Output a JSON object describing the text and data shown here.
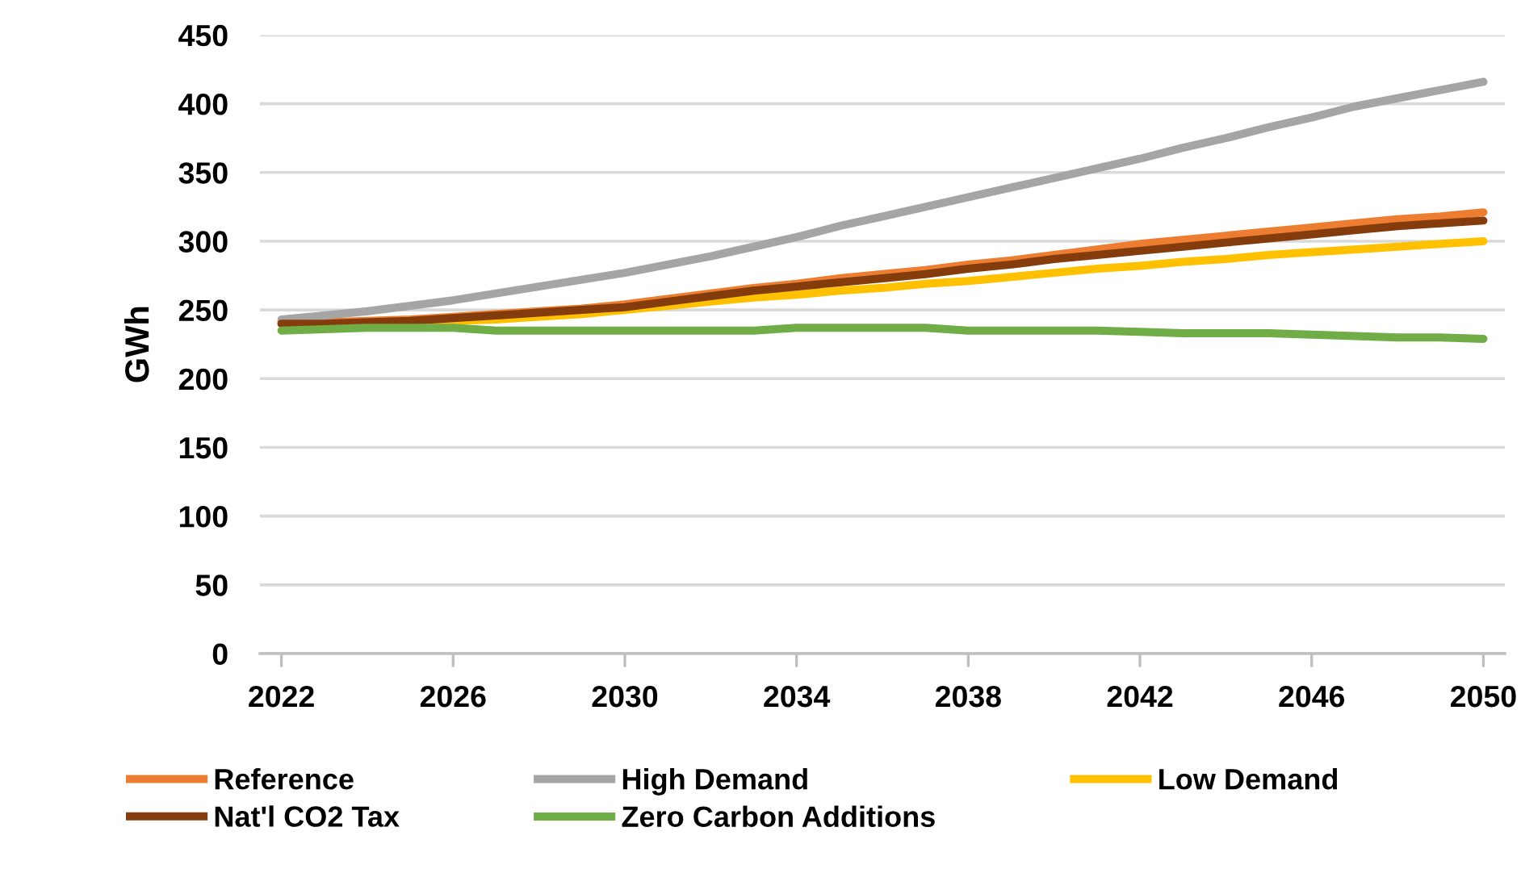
{
  "chart_data": {
    "type": "line",
    "ylabel": "GWh",
    "x": [
      2022,
      2023,
      2024,
      2025,
      2026,
      2027,
      2028,
      2029,
      2030,
      2031,
      2032,
      2033,
      2034,
      2035,
      2036,
      2037,
      2038,
      2039,
      2040,
      2041,
      2042,
      2043,
      2044,
      2045,
      2046,
      2047,
      2048,
      2049,
      2050
    ],
    "xlim": [
      2021.5,
      2050.5
    ],
    "xticks": [
      2022,
      2026,
      2030,
      2034,
      2038,
      2042,
      2046,
      2050
    ],
    "ylim": [
      0,
      450
    ],
    "yticks": [
      0,
      50,
      100,
      150,
      200,
      250,
      300,
      350,
      400,
      450
    ],
    "grid": "y",
    "legend": "bottom",
    "line_style": "solid",
    "series": [
      {
        "name": "Reference",
        "color": "#ed7d31",
        "values": [
          241,
          241,
          242,
          243,
          245,
          247,
          249,
          251,
          254,
          258,
          262,
          266,
          269,
          273,
          276,
          279,
          283,
          286,
          290,
          294,
          298,
          301,
          304,
          307,
          310,
          313,
          316,
          318,
          321
        ]
      },
      {
        "name": "High Demand",
        "color": "#a5a5a5",
        "values": [
          243,
          246,
          249,
          253,
          257,
          262,
          267,
          272,
          277,
          283,
          289,
          296,
          303,
          311,
          318,
          325,
          332,
          339,
          346,
          353,
          360,
          368,
          375,
          383,
          390,
          398,
          404,
          410,
          416
        ]
      },
      {
        "name": "Low Demand",
        "color": "#ffc000",
        "values": [
          null,
          null,
          null,
          241,
          242,
          243,
          245,
          247,
          250,
          253,
          256,
          259,
          261,
          264,
          266,
          269,
          271,
          274,
          277,
          280,
          282,
          285,
          287,
          290,
          292,
          294,
          296,
          298,
          300
        ]
      },
      {
        "name": "Nat'l CO2 Tax",
        "color": "#843c0c",
        "values": [
          240,
          240,
          241,
          242,
          244,
          246,
          248,
          250,
          252,
          256,
          260,
          264,
          267,
          270,
          273,
          276,
          280,
          283,
          287,
          290,
          293,
          296,
          299,
          302,
          305,
          308,
          311,
          313,
          315
        ]
      },
      {
        "name": "Zero Carbon Additions",
        "color": "#70ad47",
        "values": [
          235,
          236,
          237,
          237,
          237,
          235,
          235,
          235,
          235,
          235,
          235,
          235,
          237,
          237,
          237,
          237,
          235,
          235,
          235,
          235,
          234,
          233,
          233,
          233,
          232,
          231,
          230,
          230,
          229
        ]
      }
    ]
  }
}
